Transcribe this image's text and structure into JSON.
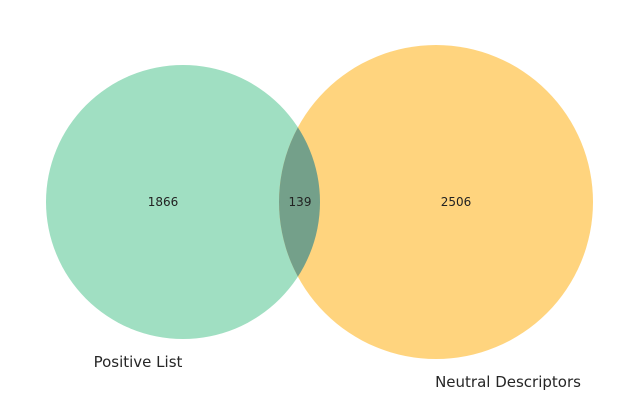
{
  "sets": {
    "a": {
      "label": "Positive List",
      "color": "#a0dfc2"
    },
    "b": {
      "label": "Neutral Descriptors",
      "color": "#ffd47e"
    },
    "overlap_color": "#74a08a"
  },
  "regions": {
    "a_only": "1866",
    "a_and_b": "139",
    "b_only": "2506"
  }
}
